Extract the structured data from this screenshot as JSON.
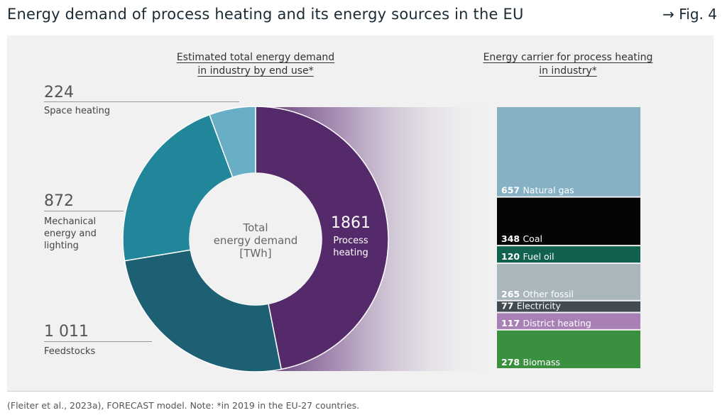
{
  "header": {
    "title": "Energy demand of process heating and its energy sources in the EU",
    "fig_ref": "→ Fig. 4"
  },
  "left_heading": [
    "Estimated total energy demand",
    "in industry by end use*"
  ],
  "right_heading": [
    "Energy carrier for process heating",
    "in industry*"
  ],
  "center_label": [
    "Total",
    "energy demand",
    "[TWh]"
  ],
  "chart_data": [
    {
      "type": "pie",
      "title": "Estimated total energy demand in industry by end use*",
      "unit": "TWh",
      "slices": [
        {
          "label": "Process heating",
          "value_label": "1861",
          "value": 1861,
          "color": "#552a6b"
        },
        {
          "label": "Feedstocks",
          "value_label": "1 011",
          "value": 1011,
          "color": "#1d5f73"
        },
        {
          "label": "Mechanical energy and lighting",
          "value_label": "872",
          "value": 872,
          "color": "#22869a"
        },
        {
          "label": "Space heating",
          "value_label": "224",
          "value": 224,
          "color": "#68aec4"
        }
      ]
    },
    {
      "type": "bar",
      "stacked": true,
      "title": "Energy carrier for process heating in industry*",
      "unit": "TWh",
      "segments": [
        {
          "label": "Natural gas",
          "value": 657,
          "color": "#86b0c4",
          "value_color": "#ffffff",
          "label_color": "#ffffff"
        },
        {
          "label": "Coal",
          "value": 348,
          "color": "#050505",
          "value_color": "#ffffff",
          "label_color": "#ffffff"
        },
        {
          "label": "Fuel oil",
          "value": 120,
          "color": "#11614f",
          "value_color": "#ffffff",
          "label_color": "#ffffff"
        },
        {
          "label": "Other fossil",
          "value": 265,
          "color": "#a9b7bd",
          "value_color": "#ffffff",
          "label_color": "#ffffff"
        },
        {
          "label": "Electricity",
          "value": 77,
          "color": "#434b52",
          "value_color": "#ffffff",
          "label_color": "#ffffff"
        },
        {
          "label": "District heating",
          "value": 117,
          "color": "#a880b6",
          "value_color": "#ffffff",
          "label_color": "#ffffff"
        },
        {
          "label": "Biomass",
          "value": 278,
          "color": "#3b9040",
          "value_color": "#ffffff",
          "label_color": "#ffffff"
        }
      ]
    }
  ],
  "source_note": "(Fleiter et al., 2023a), FORECAST model. Note: *in 2019 in the EU-27 countries."
}
